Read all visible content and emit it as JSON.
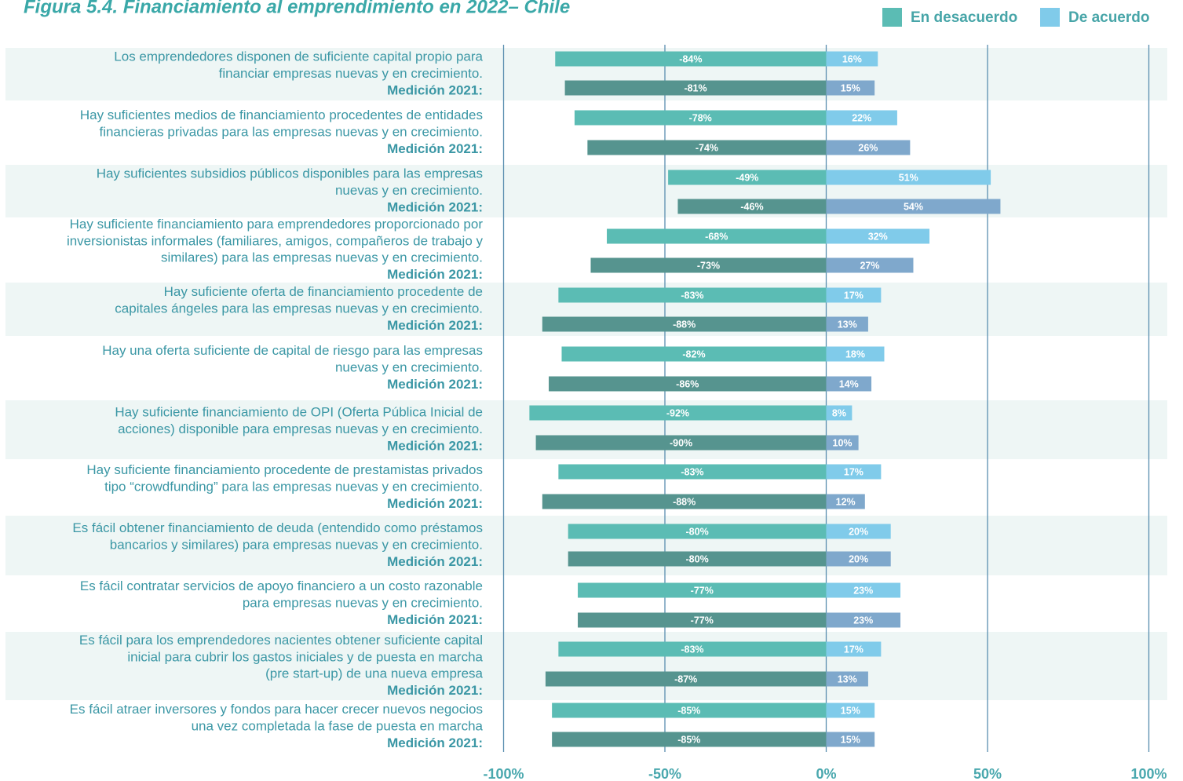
{
  "chart_data": {
    "type": "diverging_bar",
    "title": "Figura 5.4. Financiamiento al emprendimiento en 2022– Chile",
    "prior_label": "Medición 2021:",
    "categories": [
      [
        "Los emprendedores disponen de suficiente capital propio para",
        "financiar empresas nuevas y en crecimiento."
      ],
      [
        "Hay suficientes medios de financiamiento procedentes de entidades",
        "financieras privadas para las empresas nuevas y en crecimiento."
      ],
      [
        "Hay suficientes subsidios públicos disponibles para las empresas",
        "nuevas y en crecimiento."
      ],
      [
        "Hay suficiente financiamiento para emprendedores proporcionado por",
        "inversionistas informales (familiares, amigos, compañeros de trabajo y",
        "similares) para las empresas nuevas y en crecimiento."
      ],
      [
        "Hay suficiente oferta de financiamiento procedente de",
        "capitales ángeles para las empresas nuevas y en crecimiento."
      ],
      [
        "Hay una oferta suficiente de capital de riesgo para las empresas",
        "nuevas y en crecimiento."
      ],
      [
        "Hay suficiente financiamiento de OPI (Oferta Pública Inicial de",
        "acciones) disponible para empresas nuevas y en crecimiento."
      ],
      [
        "Hay suficiente financiamiento procedente de prestamistas privados",
        "tipo “crowdfunding” para las empresas nuevas y en crecimiento."
      ],
      [
        "Es fácil obtener financiamiento de deuda (entendido como préstamos",
        "bancarios y similares) para empresas nuevas y en crecimiento."
      ],
      [
        "Es fácil contratar servicios de apoyo financiero a un costo razonable",
        "para empresas nuevas y en crecimiento."
      ],
      [
        "Es fácil para los emprendedores nacientes obtener suficiente capital",
        "inicial para cubrir los gastos iniciales y de puesta en marcha",
        "(pre start-up) de una nueva empresa"
      ],
      [
        "Es fácil atraer inversores y fondos para hacer crecer nuevos negocios",
        "una vez completada la fase de puesta en marcha"
      ]
    ],
    "series": [
      {
        "name": "En desacuerdo",
        "color": "#5bbcb4",
        "prior_color": "#56948f",
        "values": [
          -84,
          -78,
          -49,
          -68,
          -83,
          -82,
          -92,
          -83,
          -80,
          -77,
          -83,
          -85
        ],
        "value_labels": [
          "-84%",
          "-78%",
          "-49%",
          "-68%",
          "-83%",
          "-82%",
          "-92%",
          "-83%",
          "-80%",
          "-77%",
          "-83%",
          "-85%"
        ],
        "prior_values": [
          -81,
          -74,
          -46,
          -73,
          -88,
          -86,
          -90,
          -88,
          -80,
          -77,
          -87,
          -85
        ],
        "prior_value_labels": [
          "-81%",
          "-74%",
          "-46%",
          "-73%",
          "-88%",
          "-86%",
          "-90%",
          "-88%",
          "-80%",
          "-77%",
          "-87%",
          "-85%"
        ]
      },
      {
        "name": "De acuerdo",
        "color": "#80cbea",
        "prior_color": "#7fa8cc",
        "values": [
          16,
          22,
          51,
          32,
          17,
          18,
          8,
          17,
          20,
          23,
          17,
          15
        ],
        "value_labels": [
          "16%",
          "22%",
          "51%",
          "32%",
          "17%",
          "18%",
          "8%",
          "17%",
          "20%",
          "23%",
          "17%",
          "15%"
        ],
        "prior_values": [
          15,
          26,
          54,
          27,
          13,
          14,
          10,
          12,
          20,
          23,
          13,
          15
        ],
        "prior_value_labels": [
          "15%",
          "26%",
          "54%",
          "27%",
          "13%",
          "14%",
          "10%",
          "12%",
          "20%",
          "23%",
          "13%",
          "15%"
        ]
      }
    ],
    "xlim": [
      -100,
      100
    ],
    "xticks": [
      {
        "value": -100,
        "label": "-100%"
      },
      {
        "value": -50,
        "label": "-50%"
      },
      {
        "value": 0,
        "label": "0%"
      },
      {
        "value": 50,
        "label": "50%"
      },
      {
        "value": 100,
        "label": "100%"
      }
    ],
    "grid": true
  }
}
